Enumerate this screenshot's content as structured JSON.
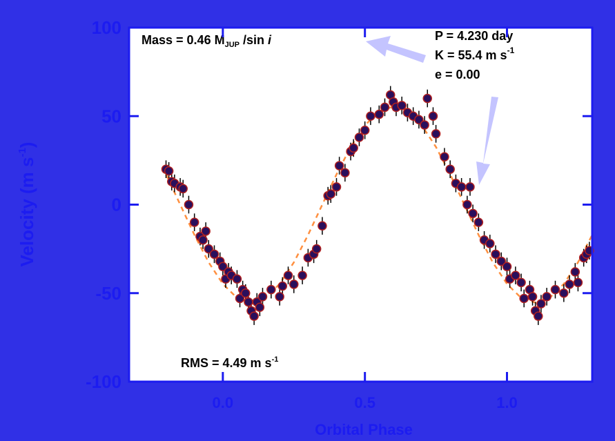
{
  "chart_data": {
    "type": "scatter",
    "x_label": "Orbital Phase",
    "y_label": [
      "Velocity  (m s",
      "-1",
      ")"
    ],
    "xlim": [
      -0.33,
      1.3
    ],
    "ylim": [
      -100,
      100
    ],
    "xticks": [
      {
        "value": 0,
        "label": "0.0"
      },
      {
        "value": 0.5,
        "label": "0.5"
      },
      {
        "value": 1,
        "label": "1.0"
      }
    ],
    "yticks": [
      -100,
      -50,
      0,
      50,
      100
    ],
    "annotations": {
      "mass": [
        "Mass = 0.46 M",
        "JUP",
        " /sin ",
        "i"
      ],
      "period": "P = 4.230 day",
      "amplitude": [
        "K = 55.4 m s",
        "-1"
      ],
      "eccentricity": "e = 0.00",
      "rms": [
        "RMS = 4.49 m s",
        "-1"
      ]
    },
    "series": [
      {
        "type": "scatter",
        "color": "#2a0f5c",
        "edge_color": "#b02020",
        "error_color": "#000000",
        "error": 5,
        "x": [
          -0.2,
          -0.19,
          -0.18,
          -0.17,
          -0.15,
          -0.14,
          -0.12,
          -0.1,
          -0.08,
          -0.07,
          -0.06,
          -0.05,
          -0.03,
          -0.01,
          0.0,
          0.01,
          0.02,
          0.03,
          0.05,
          0.06,
          0.07,
          0.08,
          0.09,
          0.1,
          0.11,
          0.12,
          0.13,
          0.14,
          0.17,
          0.2,
          0.21,
          0.23,
          0.25,
          0.28,
          0.3,
          0.32,
          0.33,
          0.35,
          0.37,
          0.38,
          0.4,
          0.41,
          0.43,
          0.45,
          0.46,
          0.48,
          0.5,
          0.52,
          0.55,
          0.57,
          0.59,
          0.6,
          0.61,
          0.63,
          0.65,
          0.67,
          0.69,
          0.71,
          0.72,
          0.74,
          0.75,
          0.78,
          0.8,
          0.82,
          0.84,
          0.86,
          0.87,
          0.88,
          0.9,
          0.92,
          0.94,
          0.96,
          0.98,
          1.0,
          1.01,
          1.03,
          1.05,
          1.06,
          1.08,
          1.09,
          1.1,
          1.11,
          1.12,
          1.14,
          1.17,
          1.2,
          1.22,
          1.24,
          1.25,
          1.27,
          1.28,
          1.29
        ],
        "values": [
          20,
          19,
          13,
          12,
          10,
          9,
          0,
          -10,
          -18,
          -20,
          -15,
          -25,
          -28,
          -32,
          -35,
          -42,
          -38,
          -40,
          -42,
          -53,
          -48,
          -50,
          -55,
          -60,
          -63,
          -55,
          -58,
          -52,
          -48,
          -52,
          -46,
          -40,
          -45,
          -40,
          -30,
          -28,
          -25,
          -12,
          5,
          6,
          10,
          22,
          18,
          30,
          32,
          38,
          42,
          50,
          51,
          55,
          62,
          58,
          55,
          56,
          52,
          50,
          48,
          45,
          60,
          50,
          40,
          27,
          20,
          12,
          10,
          0,
          10,
          -5,
          -10,
          -20,
          -22,
          -28,
          -32,
          -35,
          -42,
          -40,
          -44,
          -53,
          -48,
          -52,
          -60,
          -63,
          -56,
          -52,
          -48,
          -50,
          -45,
          -38,
          -44,
          -30,
          -28,
          -26
        ]
      },
      {
        "type": "line",
        "color": "#ff9040",
        "dash": true,
        "x": [
          -0.2,
          -0.15,
          -0.1,
          -0.05,
          0.0,
          0.05,
          0.1,
          0.15,
          0.2,
          0.25,
          0.3,
          0.35,
          0.4,
          0.45,
          0.5,
          0.55,
          0.6,
          0.65,
          0.7,
          0.75,
          0.8,
          0.85,
          0.9,
          0.95,
          1.0,
          1.05,
          1.1,
          1.15,
          1.2,
          1.25,
          1.3
        ],
        "values": [
          17.1,
          0,
          -17.1,
          -32.6,
          -44.8,
          -52.7,
          -55.4,
          -52.7,
          -44.8,
          -32.6,
          -17.1,
          0,
          17.1,
          32.6,
          44.8,
          52.7,
          55.4,
          52.7,
          44.8,
          32.6,
          17.1,
          0,
          -17.1,
          -32.6,
          -44.8,
          -52.7,
          -55.4,
          -52.7,
          -44.8,
          -32.6,
          -17.1
        ]
      }
    ]
  }
}
